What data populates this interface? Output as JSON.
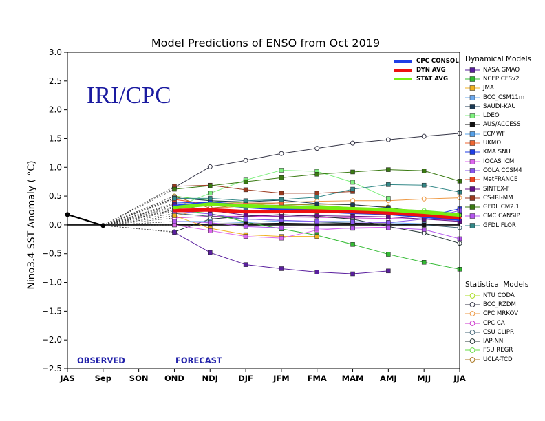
{
  "colors": {
    "consol": "#1f3ee6",
    "dyn_avg": "#ee1111",
    "stat_avg": "#77ee11",
    "observed": "#000000",
    "watermark": "#1a1aa0",
    "phase_label": "#2222aa"
  },
  "chart_data": {
    "type": "line",
    "title": "Model Predictions of ENSO from Oct 2019",
    "ylabel": "Nino3.4 SST Anomaly ( °C)",
    "xlabel": "",
    "ylim": [
      -2.5,
      3.0
    ],
    "yticks": [
      "3.0",
      "2.5",
      "2.0",
      "1.5",
      "1.0",
      "0.5",
      "0.0",
      "−0.5",
      "−1.0",
      "−1.5",
      "−2.0",
      "−2.5"
    ],
    "categories": [
      "JAS",
      "Sep",
      "SON",
      "OND",
      "NDJ",
      "DJF",
      "JFM",
      "FMA",
      "MAM",
      "AMJ",
      "MJJ",
      "JJA"
    ],
    "grid": false,
    "watermark": "IRI/CPC",
    "observed_label": "OBSERVED",
    "forecast_label": "FORECAST",
    "observed": [
      0.18,
      -0.01
    ],
    "consensus": [
      {
        "name": "CPC CONSOL",
        "color": "#1f3ee6",
        "values": [
          0.32,
          0.38,
          0.32,
          0.28,
          0.25,
          0.22,
          0.2,
          0.15,
          0.1
        ]
      },
      {
        "name": "DYN AVG",
        "color": "#ee1111",
        "values": [
          0.25,
          0.26,
          0.23,
          0.23,
          0.24,
          0.23,
          0.21,
          0.17,
          0.12
        ]
      },
      {
        "name": "STAT AVG",
        "color": "#77ee11",
        "values": [
          0.3,
          0.36,
          0.33,
          0.31,
          0.3,
          0.28,
          0.26,
          0.22,
          0.17
        ]
      }
    ],
    "dynamical_title": "Dynamical Models",
    "dynamical": [
      {
        "name": "NASA GMAO",
        "color": "#5a1f9e",
        "values": [
          -0.13,
          -0.48,
          -0.69,
          -0.76,
          -0.82,
          -0.85,
          -0.8,
          null,
          null
        ]
      },
      {
        "name": "NCEP CFSv2",
        "color": "#33bb33",
        "values": [
          0.26,
          0.2,
          0.05,
          -0.07,
          -0.18,
          -0.34,
          -0.51,
          -0.65,
          -0.77
        ]
      },
      {
        "name": "JMA",
        "color": "#f0b020",
        "values": [
          0.16,
          -0.06,
          -0.17,
          -0.2,
          -0.2,
          null,
          null,
          null,
          null
        ]
      },
      {
        "name": "BCC_CSM11m",
        "color": "#6aa8ee",
        "values": [
          0.06,
          0.06,
          0.04,
          0.07,
          0.06,
          0.06,
          0.04,
          0.02,
          null
        ]
      },
      {
        "name": "SAUDI-KAU",
        "color": "#1b3a55",
        "values": [
          0.47,
          0.42,
          0.4,
          0.43,
          0.37,
          0.35,
          0.3,
          0.22,
          0.18
        ]
      },
      {
        "name": "LDEO",
        "color": "#7ef07e",
        "values": [
          0.3,
          0.55,
          0.78,
          0.95,
          0.93,
          0.74,
          0.46,
          null,
          null
        ]
      },
      {
        "name": "AUS/ACCESS",
        "color": "#111111",
        "values": [
          0.0,
          0.02,
          0.02,
          0.03,
          0.02,
          0.03,
          0.02,
          0.0,
          null
        ]
      },
      {
        "name": "ECMWF",
        "color": "#55a0e8",
        "values": [
          0.32,
          0.36,
          0.3,
          0.28,
          null,
          null,
          null,
          null,
          null
        ]
      },
      {
        "name": "UKMO",
        "color": "#ee6633",
        "values": [
          0.36,
          0.38,
          0.38,
          0.38,
          null,
          null,
          null,
          null,
          null
        ]
      },
      {
        "name": "KMA SNU",
        "color": "#1f3ee6",
        "values": [
          0.38,
          0.4,
          0.33,
          0.28,
          0.24,
          0.22,
          0.2,
          0.14,
          0.28
        ]
      },
      {
        "name": "IOCAS ICM",
        "color": "#dd66ee",
        "values": [
          0.0,
          -0.1,
          -0.2,
          -0.23,
          -0.09,
          -0.05,
          -0.04,
          null,
          null
        ]
      },
      {
        "name": "COLA CCSM4",
        "color": "#8855ee",
        "values": [
          0.24,
          0.19,
          0.1,
          0.08,
          0.06,
          0.05,
          0.04,
          0.1,
          0.25
        ]
      },
      {
        "name": "MetFRANCE",
        "color": "#ee4422",
        "values": [
          0.44,
          0.36,
          0.32,
          0.28,
          0.26,
          null,
          null,
          null,
          null
        ]
      },
      {
        "name": "SINTEX-F",
        "color": "#66118a",
        "values": [
          0.35,
          0.25,
          0.17,
          0.15,
          0.16,
          0.15,
          0.14,
          0.1,
          0.06
        ]
      },
      {
        "name": "CS-IRI-MM",
        "color": "#9a3a1e",
        "values": [
          0.67,
          0.69,
          0.61,
          0.55,
          0.55,
          0.58,
          null,
          null,
          null
        ]
      },
      {
        "name": "GFDL CM2.1",
        "color": "#3a7a12",
        "values": [
          0.62,
          0.68,
          0.75,
          0.82,
          0.88,
          0.92,
          0.96,
          0.94,
          0.76
        ]
      },
      {
        "name": "CMC CANSIP",
        "color": "#b455ee",
        "values": [
          0.06,
          0.04,
          -0.03,
          -0.05,
          -0.06,
          -0.06,
          -0.05,
          -0.08,
          -0.24
        ]
      },
      {
        "name": "GFDL FLOR",
        "color": "#338888",
        "values": [
          0.46,
          0.46,
          0.42,
          0.44,
          0.48,
          0.62,
          0.7,
          0.69,
          0.57
        ]
      }
    ],
    "statistical_title": "Statistical Models",
    "statistical": [
      {
        "name": "NTU CODA",
        "color": "#aadd22",
        "values": [
          0.27,
          0.28,
          0.25,
          0.24,
          0.23,
          0.22,
          null,
          null,
          null
        ]
      },
      {
        "name": "BCC_RZDM",
        "color": "#333344",
        "values": [
          0.65,
          1.01,
          1.12,
          1.24,
          1.33,
          1.42,
          1.48,
          1.54,
          1.59
        ]
      },
      {
        "name": "CPC MRKOV",
        "color": "#ee9944",
        "values": [
          0.16,
          0.28,
          0.33,
          0.39,
          0.41,
          0.42,
          0.42,
          0.45,
          0.47
        ]
      },
      {
        "name": "CPC CA",
        "color": "#cc33cc",
        "values": [
          0.12,
          0.15,
          0.15,
          0.14,
          0.13,
          0.12,
          0.11,
          0.1,
          0.08
        ]
      },
      {
        "name": "CSU CLIPR",
        "color": "#446677",
        "values": [
          0.2,
          0.15,
          0.1,
          0.08,
          0.05,
          0.03,
          0.02,
          0.0,
          -0.05
        ]
      },
      {
        "name": "IAP-NN",
        "color": "#223333",
        "values": [
          -0.12,
          0.1,
          0.15,
          0.18,
          0.15,
          0.1,
          -0.03,
          -0.14,
          -0.32
        ]
      },
      {
        "name": "FSU REGR",
        "color": "#66dd44",
        "values": [
          0.5,
          0.42,
          0.38,
          0.36,
          0.34,
          0.3,
          0.28,
          0.25,
          0.2
        ]
      },
      {
        "name": "UCLA-TCD",
        "color": "#aa7722",
        "values": [
          0.5,
          0.29,
          0.35,
          0.34,
          0.36,
          0.35,
          0.31,
          null,
          null
        ]
      }
    ]
  }
}
